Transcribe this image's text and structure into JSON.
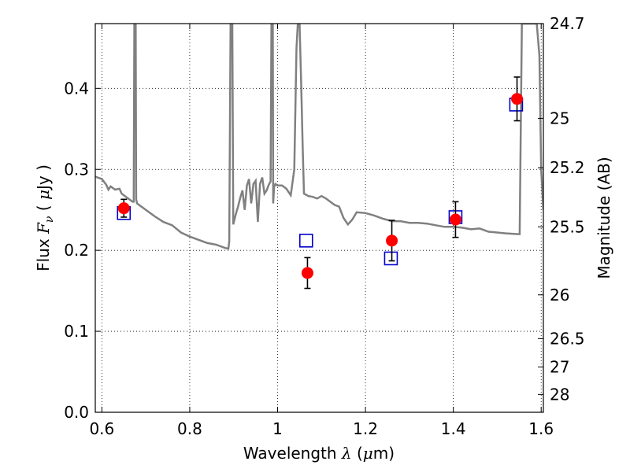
{
  "chart_data": {
    "type": "scatter",
    "title": "",
    "xlabel_parts": {
      "prefix": "Wavelength  ",
      "symbol": "λ",
      "unit_open": " (",
      "unit_mu": "μ",
      "unit_close": "m)"
    },
    "ylabel_parts": {
      "prefix": "Flux  ",
      "symbol": "F",
      "subscript": "ν",
      "unit_open": "  ( ",
      "unit_mu": "μ",
      "unit_close": "Jy )"
    },
    "y2label": "Magnitude (AB)",
    "xlim": [
      0.585,
      1.605
    ],
    "ylim": [
      0.0,
      0.48
    ],
    "grid": true,
    "grid_style": "dotted",
    "xticks": [
      0.6,
      0.8,
      1.0,
      1.2,
      1.4,
      1.6
    ],
    "xtick_labels": [
      "0.6",
      "0.8",
      "1",
      "1.2",
      "1.4",
      "1.6"
    ],
    "yticks": [
      0.0,
      0.1,
      0.2,
      0.3,
      0.4
    ],
    "ytick_labels": [
      "0.0",
      "0.1",
      "0.2",
      "0.3",
      "0.4"
    ],
    "y2ticks": [
      {
        "label": "24.7",
        "flux": 0.48
      },
      {
        "label": "25",
        "flux": 0.363
      },
      {
        "label": "25.2",
        "flux": 0.302
      },
      {
        "label": "25.5",
        "flux": 0.229
      },
      {
        "label": "26",
        "flux": 0.145
      },
      {
        "label": "26.5",
        "flux": 0.091
      },
      {
        "label": "27",
        "flux": 0.056
      },
      {
        "label": "28",
        "flux": 0.022
      }
    ],
    "colors": {
      "model_line": "#808080",
      "observed": "#ff0000",
      "model_photometry": "#0000cc",
      "grid": "#000000"
    },
    "series": [
      {
        "kind": "model_spectrum",
        "points": [
          [
            0.585,
            0.291
          ],
          [
            0.6,
            0.288
          ],
          [
            0.61,
            0.281
          ],
          [
            0.615,
            0.275
          ],
          [
            0.62,
            0.279
          ],
          [
            0.63,
            0.275
          ],
          [
            0.64,
            0.276
          ],
          [
            0.645,
            0.27
          ],
          [
            0.655,
            0.266
          ],
          [
            0.665,
            0.262
          ],
          [
            0.67,
            0.26
          ],
          [
            0.6725,
            0.26
          ],
          [
            0.674,
            0.48
          ],
          [
            0.677,
            0.48
          ],
          [
            0.678,
            0.263
          ],
          [
            0.68,
            0.258
          ],
          [
            0.7,
            0.25
          ],
          [
            0.72,
            0.242
          ],
          [
            0.74,
            0.235
          ],
          [
            0.76,
            0.231
          ],
          [
            0.78,
            0.222
          ],
          [
            0.8,
            0.217
          ],
          [
            0.82,
            0.213
          ],
          [
            0.84,
            0.209
          ],
          [
            0.86,
            0.207
          ],
          [
            0.87,
            0.205
          ],
          [
            0.88,
            0.203
          ],
          [
            0.888,
            0.202
          ],
          [
            0.89,
            0.211
          ],
          [
            0.893,
            0.48
          ],
          [
            0.897,
            0.48
          ],
          [
            0.899,
            0.232
          ],
          [
            0.905,
            0.245
          ],
          [
            0.91,
            0.254
          ],
          [
            0.915,
            0.265
          ],
          [
            0.92,
            0.274
          ],
          [
            0.925,
            0.25
          ],
          [
            0.93,
            0.28
          ],
          [
            0.935,
            0.288
          ],
          [
            0.94,
            0.258
          ],
          [
            0.945,
            0.282
          ],
          [
            0.95,
            0.286
          ],
          [
            0.955,
            0.235
          ],
          [
            0.96,
            0.282
          ],
          [
            0.965,
            0.29
          ],
          [
            0.97,
            0.27
          ],
          [
            0.975,
            0.274
          ],
          [
            0.98,
            0.281
          ],
          [
            0.984,
            0.285
          ],
          [
            0.986,
            0.48
          ],
          [
            0.989,
            0.48
          ],
          [
            0.99,
            0.258
          ],
          [
            0.992,
            0.278
          ],
          [
            0.995,
            0.282
          ],
          [
            1.0,
            0.28
          ],
          [
            1.01,
            0.28
          ],
          [
            1.02,
            0.276
          ],
          [
            1.03,
            0.268
          ],
          [
            1.038,
            0.3
          ],
          [
            1.043,
            0.45
          ],
          [
            1.046,
            0.48
          ],
          [
            1.05,
            0.48
          ],
          [
            1.054,
            0.4
          ],
          [
            1.057,
            0.33
          ],
          [
            1.06,
            0.27
          ],
          [
            1.07,
            0.267
          ],
          [
            1.08,
            0.266
          ],
          [
            1.09,
            0.264
          ],
          [
            1.1,
            0.267
          ],
          [
            1.11,
            0.264
          ],
          [
            1.12,
            0.26
          ],
          [
            1.13,
            0.256
          ],
          [
            1.14,
            0.254
          ],
          [
            1.15,
            0.24
          ],
          [
            1.16,
            0.232
          ],
          [
            1.17,
            0.238
          ],
          [
            1.18,
            0.247
          ],
          [
            1.2,
            0.246
          ],
          [
            1.22,
            0.243
          ],
          [
            1.24,
            0.239
          ],
          [
            1.26,
            0.236
          ],
          [
            1.28,
            0.236
          ],
          [
            1.3,
            0.234
          ],
          [
            1.32,
            0.234
          ],
          [
            1.34,
            0.233
          ],
          [
            1.36,
            0.231
          ],
          [
            1.38,
            0.229
          ],
          [
            1.4,
            0.229
          ],
          [
            1.42,
            0.228
          ],
          [
            1.44,
            0.226
          ],
          [
            1.46,
            0.227
          ],
          [
            1.48,
            0.223
          ],
          [
            1.5,
            0.222
          ],
          [
            1.52,
            0.221
          ],
          [
            1.548,
            0.22
          ],
          [
            1.551,
            0.22
          ],
          [
            1.556,
            0.48
          ],
          [
            1.59,
            0.48
          ],
          [
            1.596,
            0.44
          ],
          [
            1.6,
            0.3
          ],
          [
            1.605,
            0.25
          ]
        ]
      },
      {
        "kind": "model_photometry",
        "marker": "open-square",
        "points": [
          [
            0.65,
            0.246
          ],
          [
            1.065,
            0.212
          ],
          [
            1.258,
            0.19
          ],
          [
            1.405,
            0.241
          ],
          [
            1.543,
            0.38
          ]
        ]
      },
      {
        "kind": "observed_photometry",
        "marker": "filled-circle",
        "points": [
          {
            "x": 0.65,
            "y": 0.252,
            "err": 0.011
          },
          {
            "x": 1.068,
            "y": 0.172,
            "err": 0.019
          },
          {
            "x": 1.26,
            "y": 0.212,
            "err": 0.025
          },
          {
            "x": 1.405,
            "y": 0.238,
            "err": 0.022
          },
          {
            "x": 1.545,
            "y": 0.387,
            "err": 0.027
          }
        ]
      }
    ]
  }
}
